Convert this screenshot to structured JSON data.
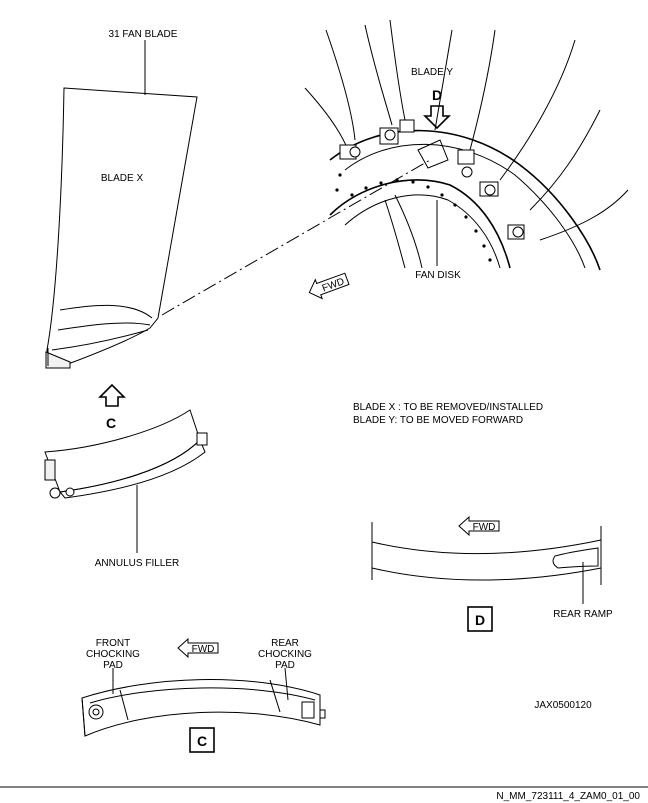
{
  "labels": {
    "fan_blade": "31 FAN BLADE",
    "blade_x": "BLADE X",
    "blade_y": "BLADE Y",
    "fan_disk": "FAN DISK",
    "annulus_filler": "ANNULUS FILLER",
    "rear_ramp": "REAR RAMP",
    "front_chocking_pad": [
      "FRONT",
      "CHOCKING",
      "PAD"
    ],
    "rear_chocking_pad": [
      "REAR",
      "CHOCKING",
      "PAD"
    ],
    "fwd": "FWD",
    "view_c": "C",
    "view_d": "D"
  },
  "notes": [
    "BLADE X : TO BE REMOVED/INSTALLED",
    "BLADE Y: TO BE MOVED FORWARD"
  ],
  "figure_ref": "JAX0500120",
  "document_ref": "N_MM_723111_4_ZAM0_01_00",
  "icons": [
    "fwd-arrow-icon",
    "view-arrow-icon"
  ]
}
